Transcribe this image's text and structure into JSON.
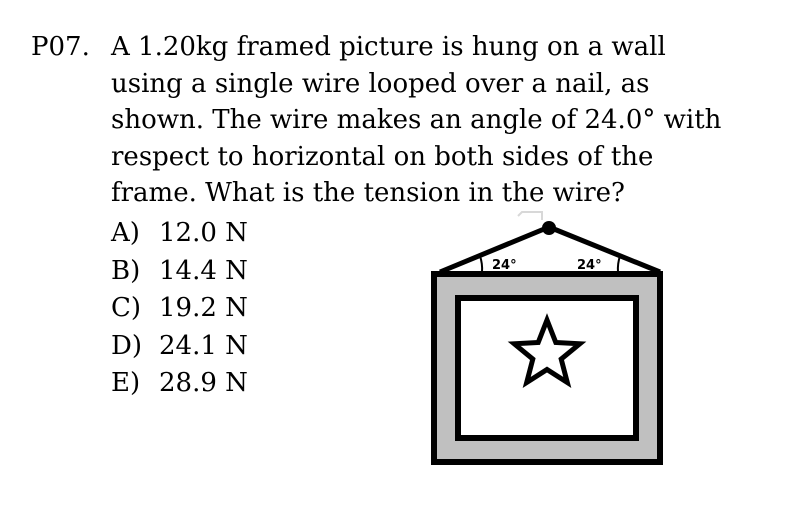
{
  "problem": {
    "number": "P07.",
    "question_lines": [
      "A 1.20kg framed picture is hung on a wall",
      "using a single wire looped over a nail, as",
      "shown. The wire makes an angle of 24.0° with",
      "respect to horizontal on both sides of the",
      "frame.  What is the tension in the wire?"
    ]
  },
  "choices": [
    {
      "letter": "A)",
      "value": "12.0 N"
    },
    {
      "letter": "B)",
      "value": "14.4 N"
    },
    {
      "letter": "C)",
      "value": "19.2 N"
    },
    {
      "letter": "D)",
      "value": "24.1 N"
    },
    {
      "letter": "E)",
      "value": "28.9 N"
    }
  ],
  "figure": {
    "left_angle_label": "24°",
    "right_angle_label": "24°",
    "colors": {
      "frame_border": "#000000",
      "frame_fill": "#c0c0c0",
      "canvas_fill": "#ffffff",
      "star_stroke": "#000000"
    }
  }
}
